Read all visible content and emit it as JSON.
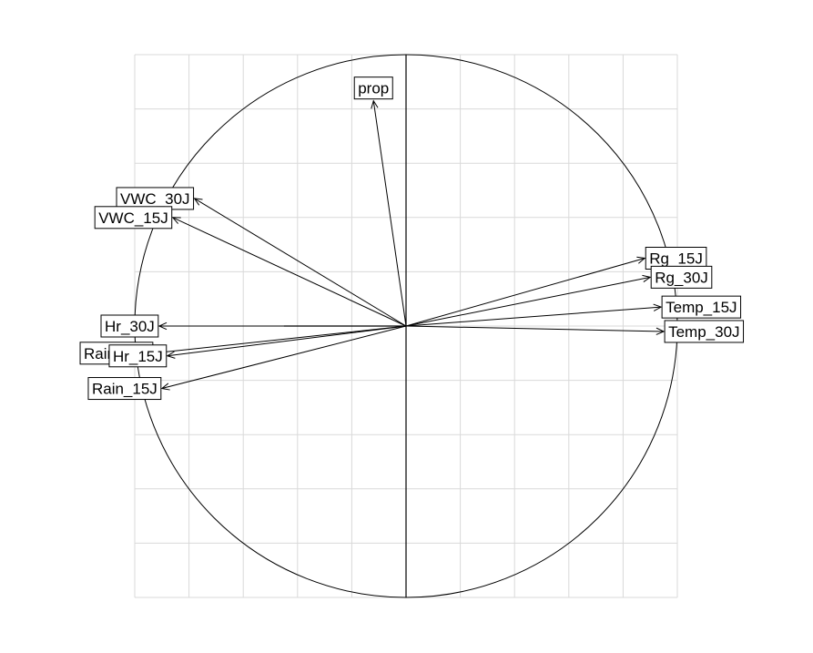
{
  "chart_data": {
    "type": "scatter",
    "subtype": "correlation-circle",
    "title": "",
    "xlabel": "",
    "ylabel": "",
    "xlim": [
      -1,
      1
    ],
    "ylim": [
      -1,
      1
    ],
    "grid": true,
    "grid_step": 0.2,
    "unit_circle": true,
    "axes_through_origin": true,
    "arrow_color": "#000000",
    "grid_color": "#d9d9d9",
    "variables": [
      {
        "name": "prop",
        "x": -0.12,
        "y": 0.83
      },
      {
        "name": "VWC_30J",
        "x": -0.78,
        "y": 0.47
      },
      {
        "name": "VWC_15J",
        "x": -0.86,
        "y": 0.4
      },
      {
        "name": "Rg_15J",
        "x": 0.88,
        "y": 0.25
      },
      {
        "name": "Rg_30J",
        "x": 0.9,
        "y": 0.18
      },
      {
        "name": "Temp_15J",
        "x": 0.94,
        "y": 0.07
      },
      {
        "name": "Temp_30J",
        "x": 0.95,
        "y": -0.02
      },
      {
        "name": "Hr_30J",
        "x": -0.91,
        "y": 0.0
      },
      {
        "name": "Rain_30J",
        "x": -0.93,
        "y": -0.1
      },
      {
        "name": "Hr_15J",
        "x": -0.88,
        "y": -0.11
      },
      {
        "name": "Rain_15J",
        "x": -0.9,
        "y": -0.23
      }
    ]
  }
}
